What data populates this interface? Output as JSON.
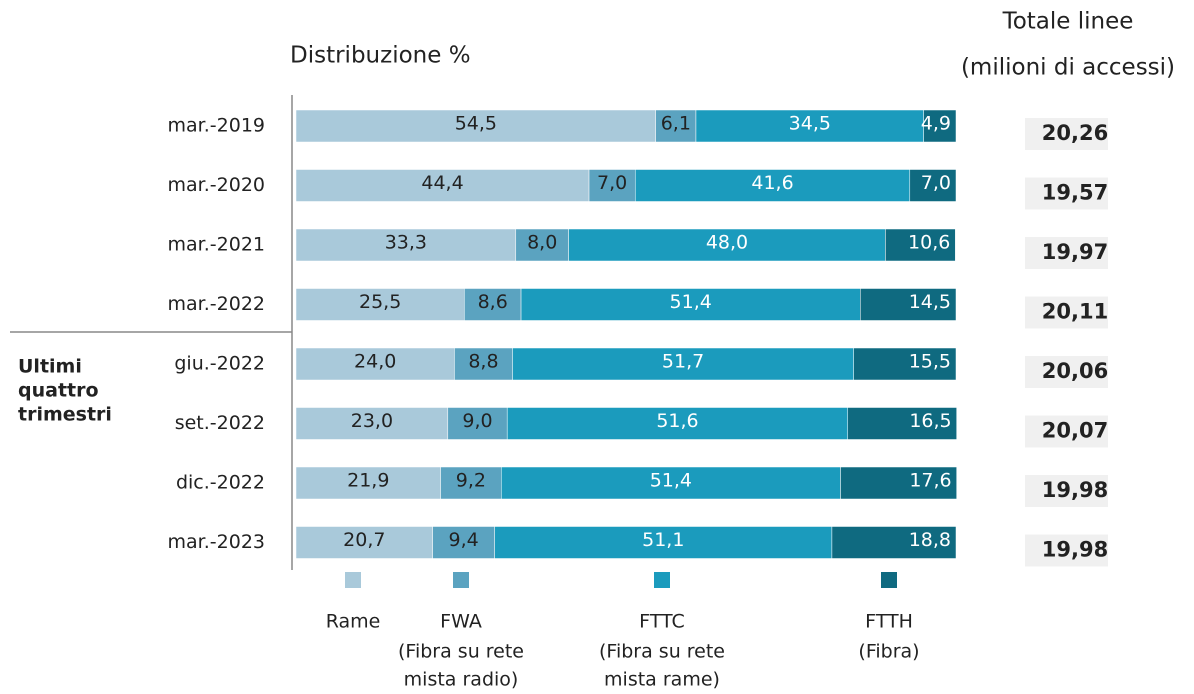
{
  "chart_data": {
    "type": "bar",
    "orientation": "horizontal",
    "stacked": true,
    "title": "Distribuzione %",
    "categories": [
      "mar.-2019",
      "mar.-2020",
      "mar.-2021",
      "mar.-2022",
      "giu.-2022",
      "set.-2022",
      "dic.-2022",
      "mar.-2023"
    ],
    "xlim": [
      0,
      100
    ],
    "series": [
      {
        "name": "Rame",
        "note_lines": [],
        "color": "#a9c9da",
        "label_color": "#222222",
        "values": [
          54.5,
          44.4,
          33.3,
          25.5,
          24.0,
          23.0,
          21.9,
          20.7
        ],
        "value_labels": [
          "54,5",
          "44,4",
          "33,3",
          "25,5",
          "24,0",
          "23,0",
          "21,9",
          "20,7"
        ]
      },
      {
        "name": "FWA",
        "note_lines": [
          "(Fibra su rete",
          "mista radio)"
        ],
        "color": "#5ba3c0",
        "label_color": "#222222",
        "values": [
          6.1,
          7.0,
          8.0,
          8.6,
          8.8,
          9.0,
          9.2,
          9.4
        ],
        "value_labels": [
          "6,1",
          "7,0",
          "8,0",
          "8,6",
          "8,8",
          "9,0",
          "9,2",
          "9,4"
        ]
      },
      {
        "name": "FTTC",
        "note_lines": [
          "(Fibra su rete",
          "mista rame)"
        ],
        "color": "#1b9bbd",
        "label_color": "#ffffff",
        "values": [
          34.5,
          41.6,
          48.0,
          51.4,
          51.7,
          51.6,
          51.4,
          51.1
        ],
        "value_labels": [
          "34,5",
          "41,6",
          "48,0",
          "51,4",
          "51,7",
          "51,6",
          "51,4",
          "51,1"
        ]
      },
      {
        "name": "FTTH",
        "note_lines": [
          "(Fibra)"
        ],
        "color": "#0f6a80",
        "label_color": "#ffffff",
        "values": [
          4.9,
          7.0,
          10.6,
          14.5,
          15.5,
          16.5,
          17.6,
          18.8
        ],
        "value_labels": [
          "4,9",
          "7,0",
          "10,6",
          "14,5",
          "15,5",
          "16,5",
          "17,6",
          "18,8"
        ]
      }
    ],
    "totals": {
      "title_lines": [
        "Totale linee",
        "(milioni di accessi)"
      ],
      "values": [
        20.26,
        19.57,
        19.97,
        20.11,
        20.06,
        20.07,
        19.98,
        19.98
      ],
      "value_labels": [
        "20,26",
        "19,57",
        "19,97",
        "20,11",
        "20,06",
        "20,07",
        "19,98",
        "19,98"
      ]
    },
    "group_label_lines": [
      "Ultimi",
      "quattro",
      "trimestri"
    ]
  }
}
